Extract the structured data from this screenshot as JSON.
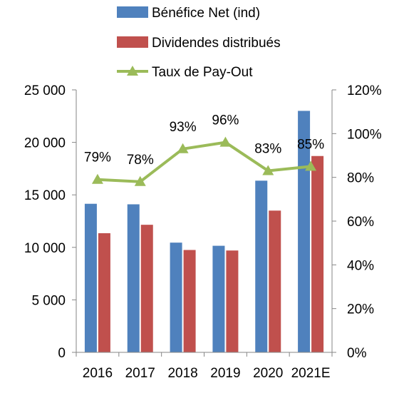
{
  "chart_data": {
    "type": "bar",
    "categories": [
      "2016",
      "2017",
      "2018",
      "2019",
      "2020",
      "2021E"
    ],
    "series": [
      {
        "name": "Bénéfice Net (ind)",
        "type": "bar",
        "axis": "left",
        "color": "#4f81bd",
        "values": [
          14150,
          14100,
          10450,
          10150,
          16350,
          23000
        ]
      },
      {
        "name": "Dividendes distribués",
        "type": "bar",
        "axis": "left",
        "color": "#c0504d",
        "values": [
          11350,
          12150,
          9750,
          9700,
          13500,
          18700
        ]
      },
      {
        "name": "Taux de Pay-Out",
        "type": "line",
        "axis": "right",
        "color": "#9bbb59",
        "marker": "triangle",
        "values": [
          0.79,
          0.78,
          0.93,
          0.96,
          0.83,
          0.85
        ],
        "labels": [
          "79%",
          "78%",
          "93%",
          "96%",
          "83%",
          "85%"
        ]
      }
    ],
    "y_left": {
      "range": [
        0,
        25000
      ],
      "ticks": [
        0,
        5000,
        10000,
        15000,
        20000,
        25000
      ],
      "tick_labels": [
        "0",
        "5 000",
        "10 000",
        "15 000",
        "20 000",
        "25 000"
      ]
    },
    "y_right": {
      "range": [
        0,
        1.2
      ],
      "ticks": [
        0,
        0.2,
        0.4,
        0.6,
        0.8,
        1.0,
        1.2
      ],
      "tick_labels": [
        "0%",
        "20%",
        "40%",
        "60%",
        "80%",
        "100%",
        "120%"
      ]
    },
    "grid": false,
    "legend_position": "top",
    "title": "",
    "xlabel": "",
    "ylabel": ""
  }
}
